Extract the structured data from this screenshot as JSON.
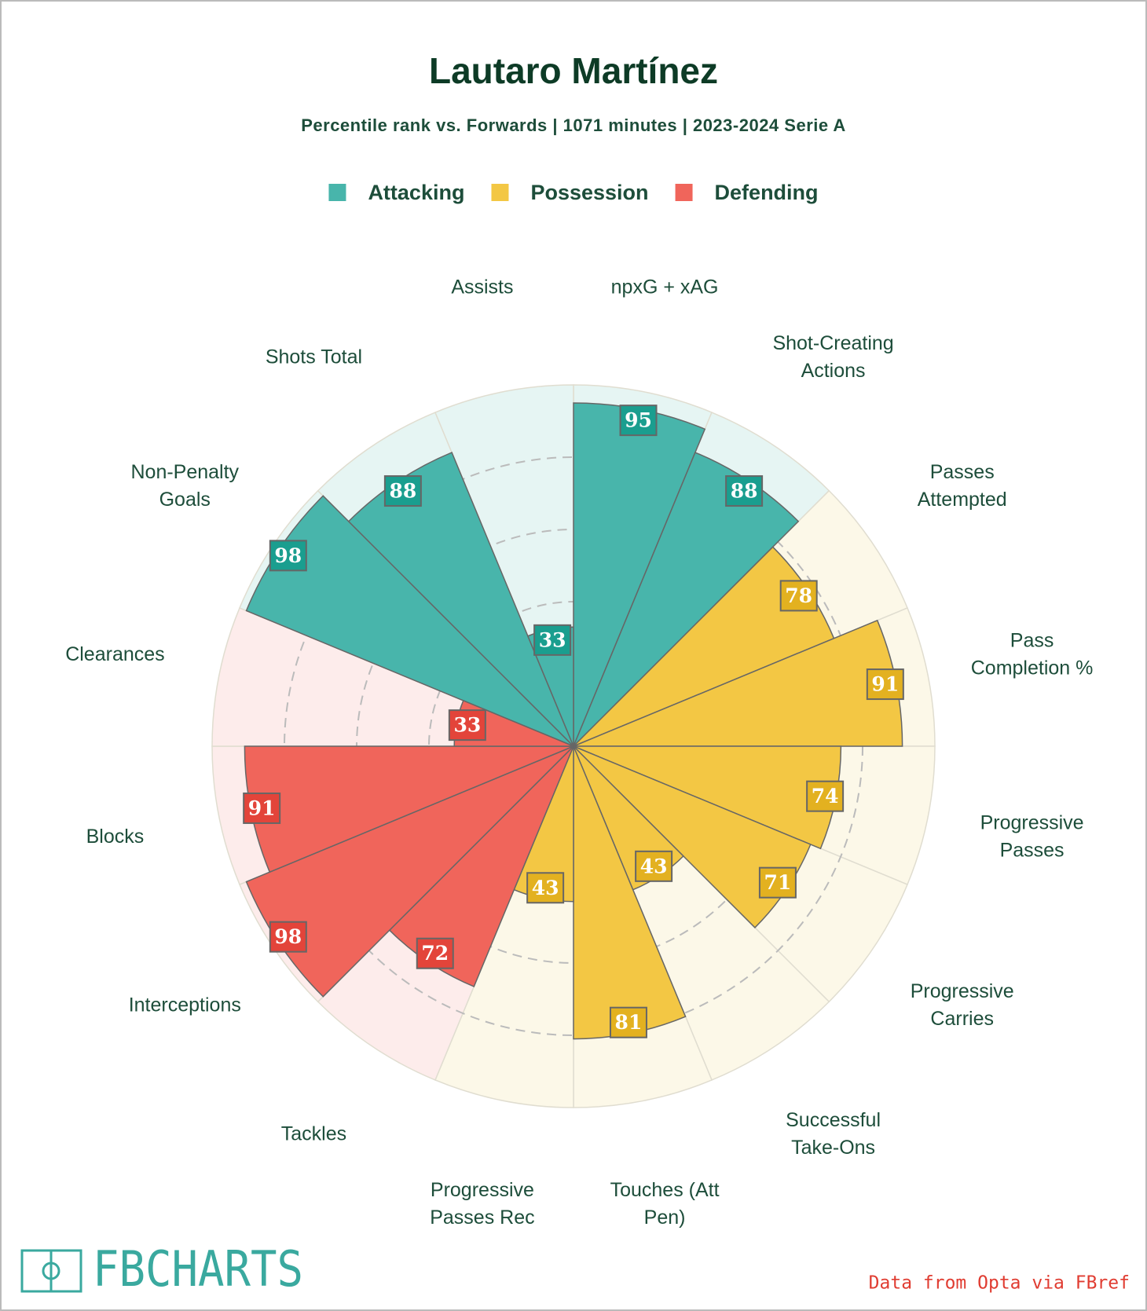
{
  "chart_data": {
    "type": "polar_bar",
    "title": "Lautaro Martínez",
    "subtitle": "Percentile rank vs. Forwards | 1071 minutes | 2023-2024 Serie A",
    "categories": [
      "npxG + xAG",
      "Shot-Creating Actions",
      "Passes Attempted",
      "Pass Completion %",
      "Progressive Passes",
      "Progressive Carries",
      "Successful Take-Ons",
      "Touches (Att Pen)",
      "Progressive Passes Rec",
      "Tackles",
      "Interceptions",
      "Blocks",
      "Clearances",
      "Non-Penalty Goals",
      "Shots Total",
      "Assists"
    ],
    "series": [
      {
        "name": "Attacking",
        "color": "#48b5ab",
        "values": [
          95,
          88,
          null,
          null,
          null,
          null,
          null,
          null,
          null,
          null,
          null,
          null,
          null,
          98,
          88,
          33
        ]
      },
      {
        "name": "Possession",
        "color": "#f3c744",
        "values": [
          null,
          null,
          78,
          91,
          74,
          71,
          43,
          81,
          43,
          null,
          null,
          null,
          null,
          null,
          null,
          null
        ]
      },
      {
        "name": "Defending",
        "color": "#f0655b",
        "values": [
          null,
          null,
          null,
          null,
          null,
          null,
          null,
          null,
          null,
          72,
          98,
          91,
          33,
          null,
          null,
          null
        ]
      }
    ],
    "rlim": [
      0,
      100
    ],
    "rticks": [
      20,
      40,
      60,
      80
    ],
    "grid": true,
    "legend": "top"
  },
  "footer": {
    "logo": "FBCHARTS",
    "credit": "Data from Opta via FBref"
  }
}
